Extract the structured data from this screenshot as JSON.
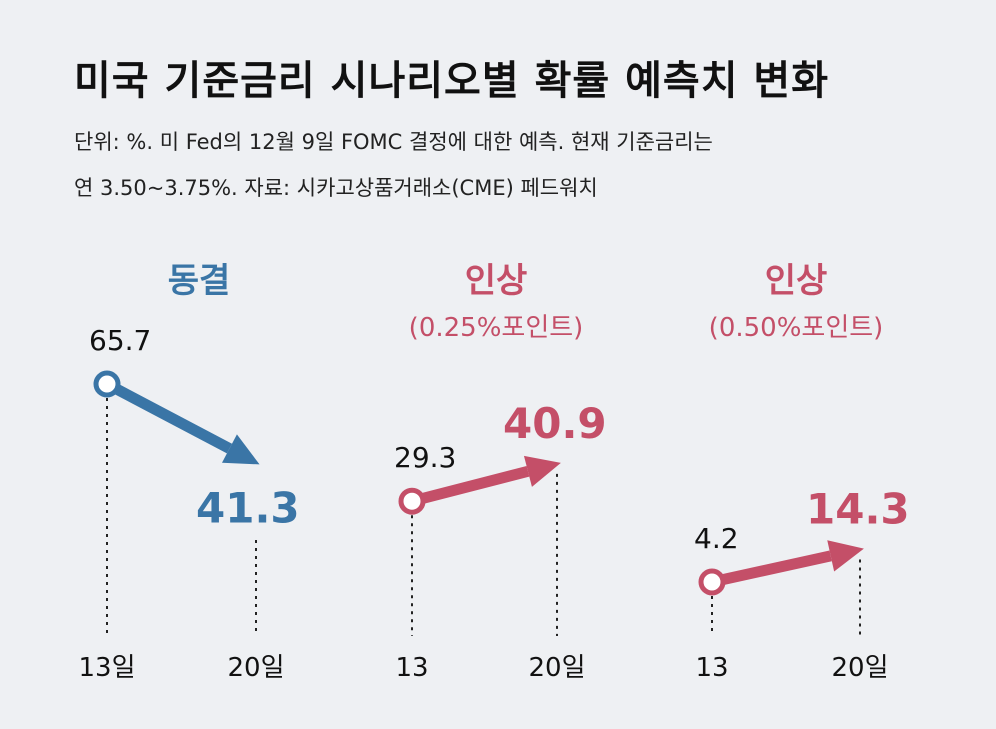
{
  "title": "미국 기준금리 시나리오별 확률 예측치 변화",
  "subtitle_line1": "단위: %. 미 Fed의 12월 9일 FOMC 결정에 대한 예측. 현재 기준금리는",
  "subtitle_line2": "연 3.50~3.75%. 자료: 시카고상품거래소(CME) 페드워치",
  "colors": {
    "hold": "#3a75a6",
    "raise": "#c44f68",
    "text": "#111111"
  },
  "chart_data": [
    {
      "type": "line",
      "title": "동결",
      "subtitle": "",
      "color": "#3a75a6",
      "x": [
        "13일",
        "20일"
      ],
      "values": [
        65.7,
        41.3
      ],
      "labels": [
        "65.7",
        "41.3"
      ],
      "ylim": [
        0,
        70
      ]
    },
    {
      "type": "line",
      "title": "인상",
      "subtitle": "(0.25%포인트)",
      "color": "#c44f68",
      "x": [
        "13",
        "20일"
      ],
      "values": [
        29.3,
        40.9
      ],
      "labels": [
        "29.3",
        "40.9"
      ],
      "ylim": [
        0,
        70
      ]
    },
    {
      "type": "line",
      "title": "인상",
      "subtitle": "(0.50%포인트)",
      "color": "#c44f68",
      "x": [
        "13",
        "20일"
      ],
      "values": [
        4.2,
        14.3
      ],
      "labels": [
        "4.2",
        "14.3"
      ],
      "ylim": [
        0,
        70
      ]
    }
  ]
}
